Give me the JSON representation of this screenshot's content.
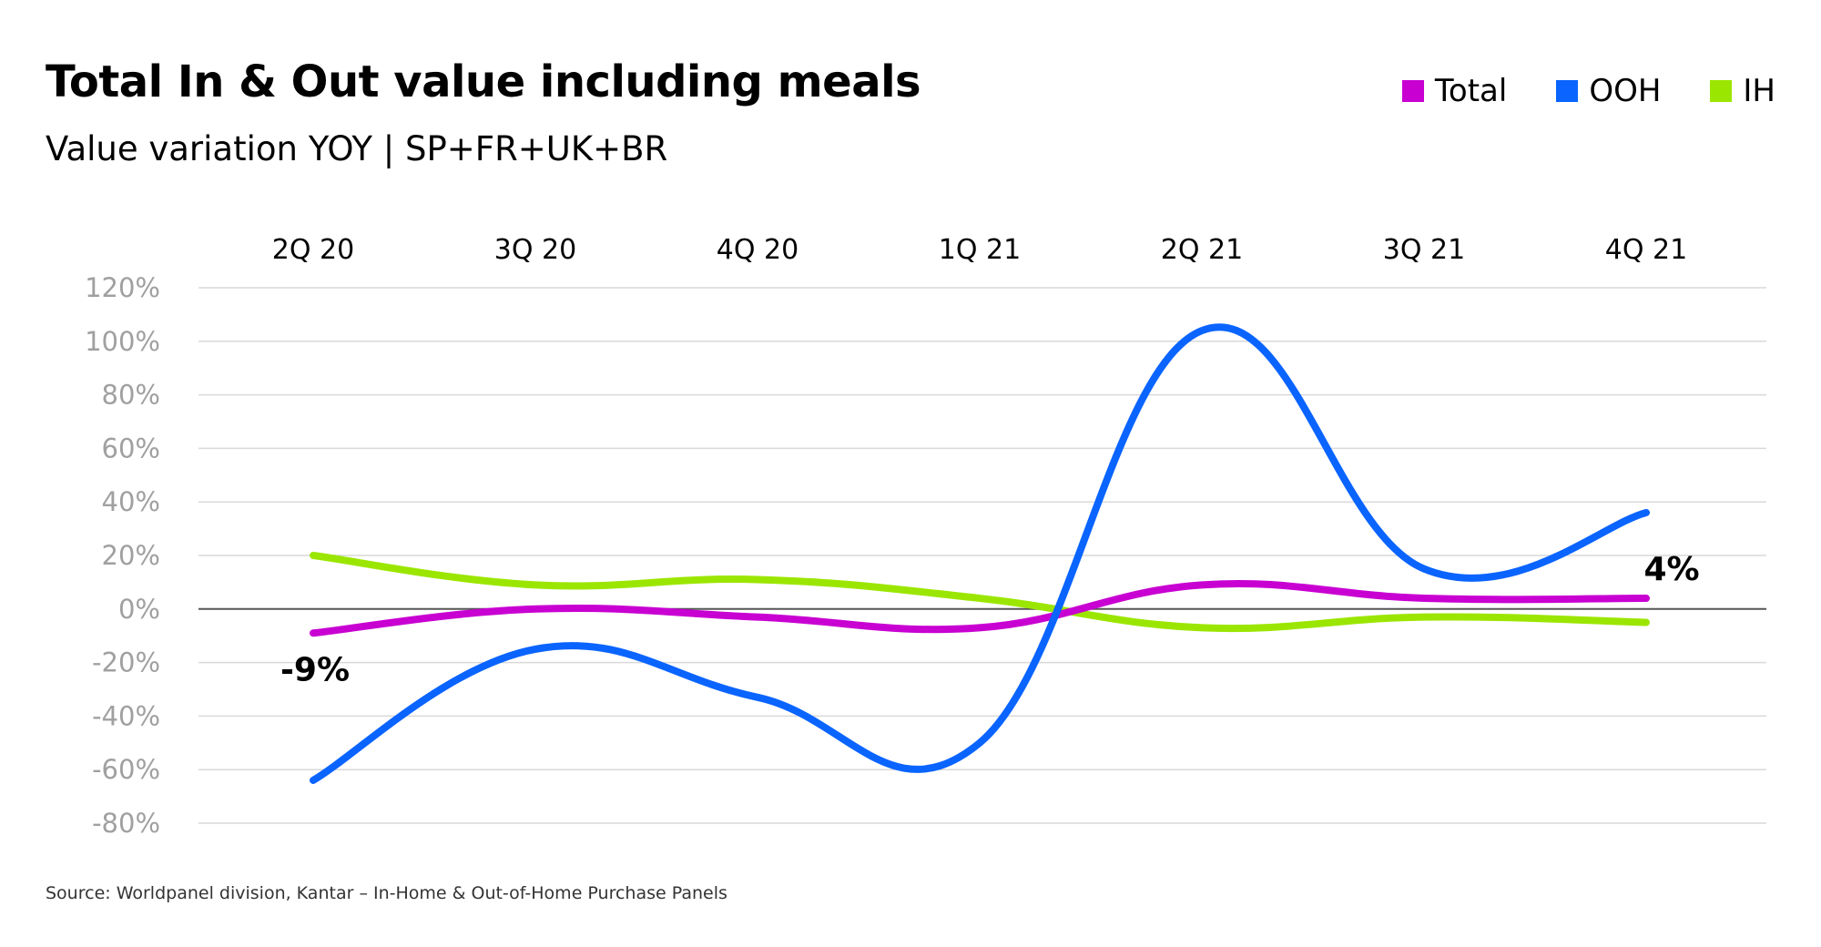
{
  "title": "Total In & Out value including meals",
  "subtitle": "Value variation YOY | SP+FR+UK+BR",
  "source": "Source: Worldpanel division, Kantar – In-Home & Out-of-Home Purchase Panels",
  "legend": [
    {
      "name": "Total",
      "color": "#c800d2"
    },
    {
      "name": "OOH",
      "color": "#0a64ff"
    },
    {
      "name": "IH",
      "color": "#9be600"
    }
  ],
  "chart_data": {
    "type": "line",
    "categories": [
      "2Q 20",
      "3Q 20",
      "4Q 20",
      "1Q 21",
      "2Q 21",
      "3Q 21",
      "4Q 21"
    ],
    "yticks": [
      "120%",
      "100%",
      "80%",
      "60%",
      "40%",
      "20%",
      "0%",
      "-20%",
      "-40%",
      "-60%",
      "-80%"
    ],
    "ylim": [
      -80,
      120
    ],
    "series": [
      {
        "name": "Total",
        "color": "#c800d2",
        "values": [
          -9,
          0,
          -3,
          -7,
          9,
          4,
          4
        ]
      },
      {
        "name": "OOH",
        "color": "#0a64ff",
        "values": [
          -64,
          -15,
          -33,
          -50,
          104,
          15,
          36
        ]
      },
      {
        "name": "IH",
        "color": "#9be600",
        "values": [
          20,
          9,
          11,
          4,
          -7,
          -3,
          -5
        ]
      }
    ],
    "annotations": [
      {
        "text": "-9%",
        "category": "2Q 20",
        "series": "Total"
      },
      {
        "text": "4%",
        "category": "4Q 21",
        "series": "Total"
      }
    ],
    "grid": true,
    "legend_position": "top-right"
  }
}
